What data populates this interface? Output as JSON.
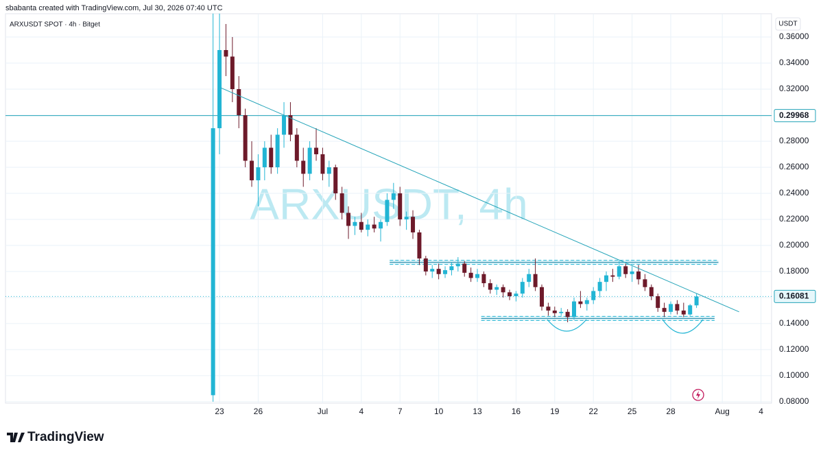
{
  "chart_data": {
    "type": "candlestick",
    "header": "sbabanta created with TradingView.com, Jul 30, 2026 07:40 UTC",
    "symbol_label": "ARXUSDT SPOT · 4h · Bitget",
    "watermark": "ARXUSDT, 4h",
    "currency": "USDT",
    "brand": "TradingView",
    "up_color": "#22b5d4",
    "down_color": "#6d1a2a",
    "grid": true,
    "x": [
      -0.5,
      0,
      0.5,
      1,
      1.5,
      2,
      2.5,
      3,
      3.5,
      4,
      4.5,
      5,
      5.5,
      6,
      6.5,
      7,
      7.5,
      8,
      8.5,
      9,
      9.5,
      10,
      10.5,
      11,
      11.5,
      12,
      12.5,
      13,
      13.5,
      14,
      14.5,
      15,
      15.5,
      16,
      16.5,
      17,
      17.5,
      18,
      18.5,
      19,
      19.5,
      20,
      20.5,
      21,
      21.5,
      22,
      22.5,
      23,
      23.5,
      24,
      24.5,
      25,
      25.5,
      26,
      26.5,
      27,
      27.5,
      28,
      28.5,
      29,
      29.5,
      30,
      30.5,
      31,
      31.5,
      32,
      32.5,
      33,
      33.5,
      34,
      34.5,
      35,
      35.5,
      36,
      36.5,
      37
    ],
    "open": [
      0.085,
      0.29,
      0.35,
      0.345,
      0.32,
      0.3,
      0.265,
      0.25,
      0.26,
      0.275,
      0.26,
      0.285,
      0.3,
      0.285,
      0.265,
      0.255,
      0.275,
      0.27,
      0.255,
      0.26,
      0.24,
      0.225,
      0.215,
      0.218,
      0.212,
      0.216,
      0.213,
      0.218,
      0.235,
      0.24,
      0.22,
      0.222,
      0.21,
      0.19,
      0.18,
      0.182,
      0.178,
      0.181,
      0.184,
      0.186,
      0.179,
      0.175,
      0.178,
      0.171,
      0.166,
      0.168,
      0.164,
      0.161,
      0.163,
      0.172,
      0.178,
      0.168,
      0.153,
      0.15,
      0.148,
      0.149,
      0.145,
      0.157,
      0.155,
      0.158,
      0.165,
      0.172,
      0.177,
      0.176,
      0.184,
      0.178,
      0.18,
      0.174,
      0.168,
      0.161,
      0.152,
      0.149,
      0.155,
      0.15,
      0.147,
      0.154
    ],
    "high": [
      0.378,
      0.378,
      0.37,
      0.36,
      0.33,
      0.305,
      0.28,
      0.27,
      0.28,
      0.285,
      0.29,
      0.31,
      0.31,
      0.29,
      0.275,
      0.28,
      0.29,
      0.275,
      0.265,
      0.262,
      0.245,
      0.23,
      0.222,
      0.225,
      0.22,
      0.222,
      0.22,
      0.24,
      0.248,
      0.245,
      0.226,
      0.227,
      0.212,
      0.192,
      0.185,
      0.186,
      0.184,
      0.187,
      0.191,
      0.188,
      0.183,
      0.182,
      0.18,
      0.174,
      0.17,
      0.17,
      0.166,
      0.165,
      0.175,
      0.182,
      0.19,
      0.17,
      0.156,
      0.153,
      0.152,
      0.151,
      0.16,
      0.165,
      0.16,
      0.168,
      0.175,
      0.18,
      0.182,
      0.188,
      0.186,
      0.184,
      0.185,
      0.178,
      0.17,
      0.163,
      0.156,
      0.157,
      0.158,
      0.156,
      0.155,
      0.163
    ],
    "low": [
      0.08,
      0.27,
      0.33,
      0.31,
      0.29,
      0.26,
      0.245,
      0.23,
      0.25,
      0.255,
      0.255,
      0.275,
      0.28,
      0.26,
      0.245,
      0.25,
      0.265,
      0.25,
      0.245,
      0.235,
      0.22,
      0.205,
      0.208,
      0.21,
      0.207,
      0.21,
      0.203,
      0.215,
      0.228,
      0.215,
      0.212,
      0.205,
      0.185,
      0.177,
      0.175,
      0.174,
      0.175,
      0.177,
      0.18,
      0.176,
      0.172,
      0.172,
      0.168,
      0.163,
      0.162,
      0.16,
      0.158,
      0.157,
      0.16,
      0.168,
      0.165,
      0.15,
      0.146,
      0.145,
      0.146,
      0.141,
      0.143,
      0.152,
      0.15,
      0.155,
      0.16,
      0.165,
      0.172,
      0.174,
      0.175,
      0.172,
      0.17,
      0.165,
      0.158,
      0.149,
      0.145,
      0.147,
      0.147,
      0.145,
      0.146,
      0.152
    ],
    "close": [
      0.29,
      0.35,
      0.345,
      0.32,
      0.3,
      0.265,
      0.25,
      0.26,
      0.275,
      0.26,
      0.285,
      0.3,
      0.285,
      0.265,
      0.255,
      0.275,
      0.27,
      0.255,
      0.26,
      0.24,
      0.225,
      0.215,
      0.218,
      0.212,
      0.216,
      0.213,
      0.218,
      0.235,
      0.24,
      0.22,
      0.222,
      0.21,
      0.19,
      0.18,
      0.182,
      0.178,
      0.181,
      0.184,
      0.186,
      0.179,
      0.175,
      0.178,
      0.171,
      0.166,
      0.168,
      0.164,
      0.161,
      0.163,
      0.172,
      0.178,
      0.168,
      0.153,
      0.15,
      0.148,
      0.149,
      0.145,
      0.157,
      0.155,
      0.158,
      0.165,
      0.172,
      0.177,
      0.176,
      0.184,
      0.178,
      0.18,
      0.174,
      0.168,
      0.161,
      0.152,
      0.149,
      0.155,
      0.15,
      0.147,
      0.154,
      0.16081
    ],
    "xlim": [
      -16.6,
      42.82
    ],
    "ylim": [
      0.0789,
      0.3779
    ],
    "xticks": [
      {
        "value": 0,
        "label": "23"
      },
      {
        "value": 3,
        "label": "26"
      },
      {
        "value": 8,
        "label": "Jul"
      },
      {
        "value": 11,
        "label": "4"
      },
      {
        "value": 14,
        "label": "7"
      },
      {
        "value": 17,
        "label": "10"
      },
      {
        "value": 20,
        "label": "13"
      },
      {
        "value": 23,
        "label": "16"
      },
      {
        "value": 26,
        "label": "19"
      },
      {
        "value": 29,
        "label": "22"
      },
      {
        "value": 32,
        "label": "25"
      },
      {
        "value": 35,
        "label": "28"
      },
      {
        "value": 39,
        "label": "Aug"
      },
      {
        "value": 42,
        "label": "4"
      }
    ],
    "yticks": [
      {
        "value": 0.08,
        "label": "0.08000"
      },
      {
        "value": 0.1,
        "label": "0.10000"
      },
      {
        "value": 0.12,
        "label": "0.12000"
      },
      {
        "value": 0.14,
        "label": "0.14000"
      },
      {
        "value": 0.16,
        "label": "0.16000"
      },
      {
        "value": 0.18,
        "label": "0.18000"
      },
      {
        "value": 0.2,
        "label": "0.20000"
      },
      {
        "value": 0.22,
        "label": "0.22000"
      },
      {
        "value": 0.24,
        "label": "0.24000"
      },
      {
        "value": 0.26,
        "label": "0.26000"
      },
      {
        "value": 0.28,
        "label": "0.28000"
      },
      {
        "value": 0.3,
        "label": "0.30000"
      },
      {
        "value": 0.32,
        "label": "0.32000"
      },
      {
        "value": 0.34,
        "label": "0.34000"
      },
      {
        "value": 0.36,
        "label": "0.36000"
      }
    ],
    "horizontal_line": 0.29968,
    "last_price": 0.16081,
    "trendline": {
      "x": [
        0.1,
        40.3
      ],
      "y": [
        0.321,
        0.149
      ]
    },
    "resistance": {
      "value": 0.187,
      "x": [
        13.2,
        38.7
      ]
    },
    "support": {
      "value": 0.144,
      "x": [
        20.3,
        38.4
      ]
    }
  }
}
